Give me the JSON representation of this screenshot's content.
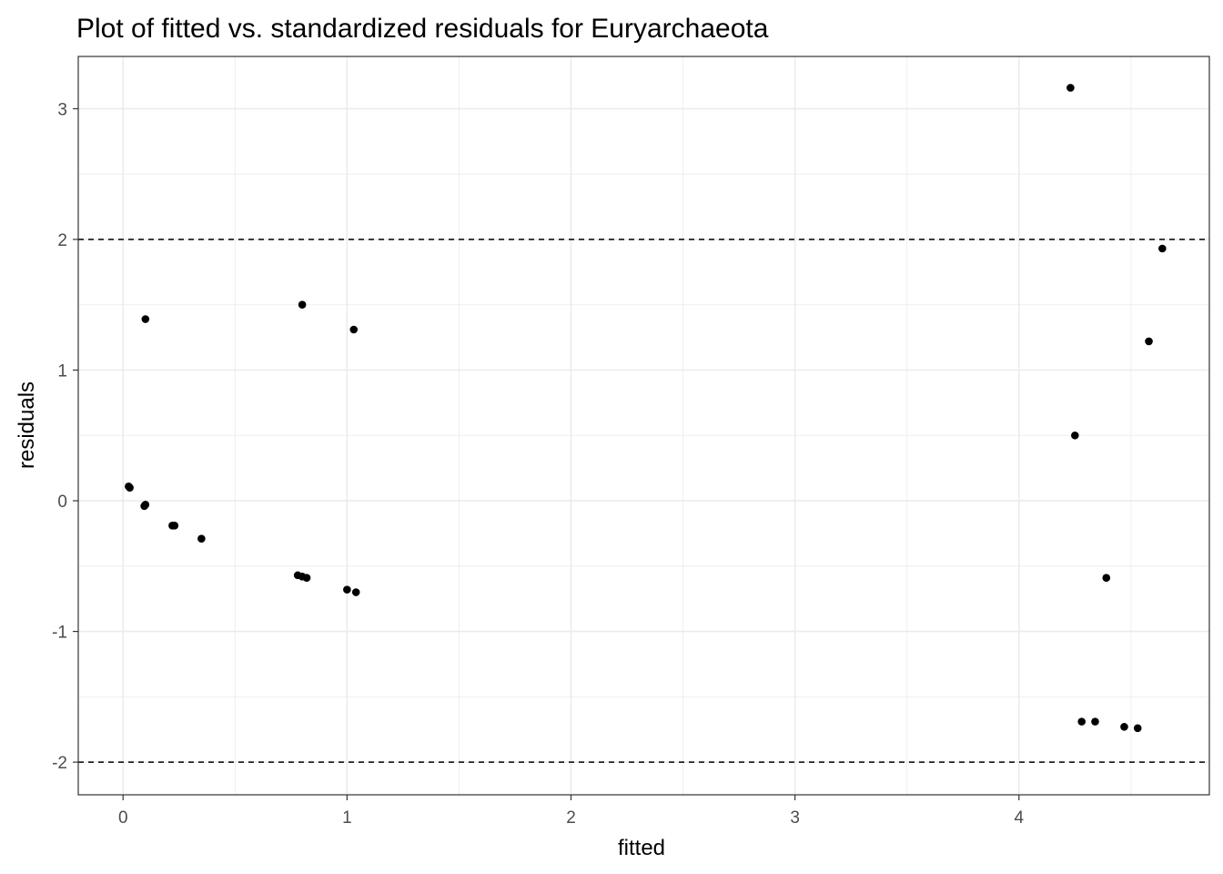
{
  "chart_data": {
    "type": "scatter",
    "title": "Plot of fitted vs. standardized residuals for Euryarchaeota",
    "xlabel": "fitted",
    "ylabel": "residuals",
    "xlim": [
      -0.2,
      4.85
    ],
    "ylim": [
      -2.25,
      3.4
    ],
    "x_ticks": [
      0,
      1,
      2,
      3,
      4
    ],
    "y_ticks": [
      -2,
      -1,
      0,
      1,
      2,
      3
    ],
    "x_tick_labels": [
      "0",
      "1",
      "2",
      "3",
      "4"
    ],
    "y_tick_labels": [
      "-2",
      "-1",
      "0",
      "1",
      "2",
      "3"
    ],
    "reference_lines": [
      2,
      -2
    ],
    "grid": true,
    "theme": "bw",
    "point_color": "#000000",
    "reference_line_color": "#000000",
    "grid_color": "#ebebeb",
    "points": [
      {
        "x": 0.03,
        "y": 0.1
      },
      {
        "x": 0.025,
        "y": 0.11
      },
      {
        "x": 0.1,
        "y": -0.03
      },
      {
        "x": 0.095,
        "y": -0.04
      },
      {
        "x": 0.1,
        "y": 1.39
      },
      {
        "x": 0.23,
        "y": -0.19
      },
      {
        "x": 0.22,
        "y": -0.19
      },
      {
        "x": 0.35,
        "y": -0.29
      },
      {
        "x": 0.78,
        "y": -0.57
      },
      {
        "x": 0.8,
        "y": -0.58
      },
      {
        "x": 0.82,
        "y": -0.59
      },
      {
        "x": 0.8,
        "y": 1.5
      },
      {
        "x": 1.0,
        "y": -0.68
      },
      {
        "x": 1.04,
        "y": -0.7
      },
      {
        "x": 1.03,
        "y": 1.31
      },
      {
        "x": 4.23,
        "y": 3.16
      },
      {
        "x": 4.25,
        "y": 0.5
      },
      {
        "x": 4.28,
        "y": -1.69
      },
      {
        "x": 4.34,
        "y": -1.69
      },
      {
        "x": 4.39,
        "y": -0.59
      },
      {
        "x": 4.47,
        "y": -1.73
      },
      {
        "x": 4.53,
        "y": -1.74
      },
      {
        "x": 4.58,
        "y": 1.22
      },
      {
        "x": 4.64,
        "y": 1.93
      }
    ]
  }
}
